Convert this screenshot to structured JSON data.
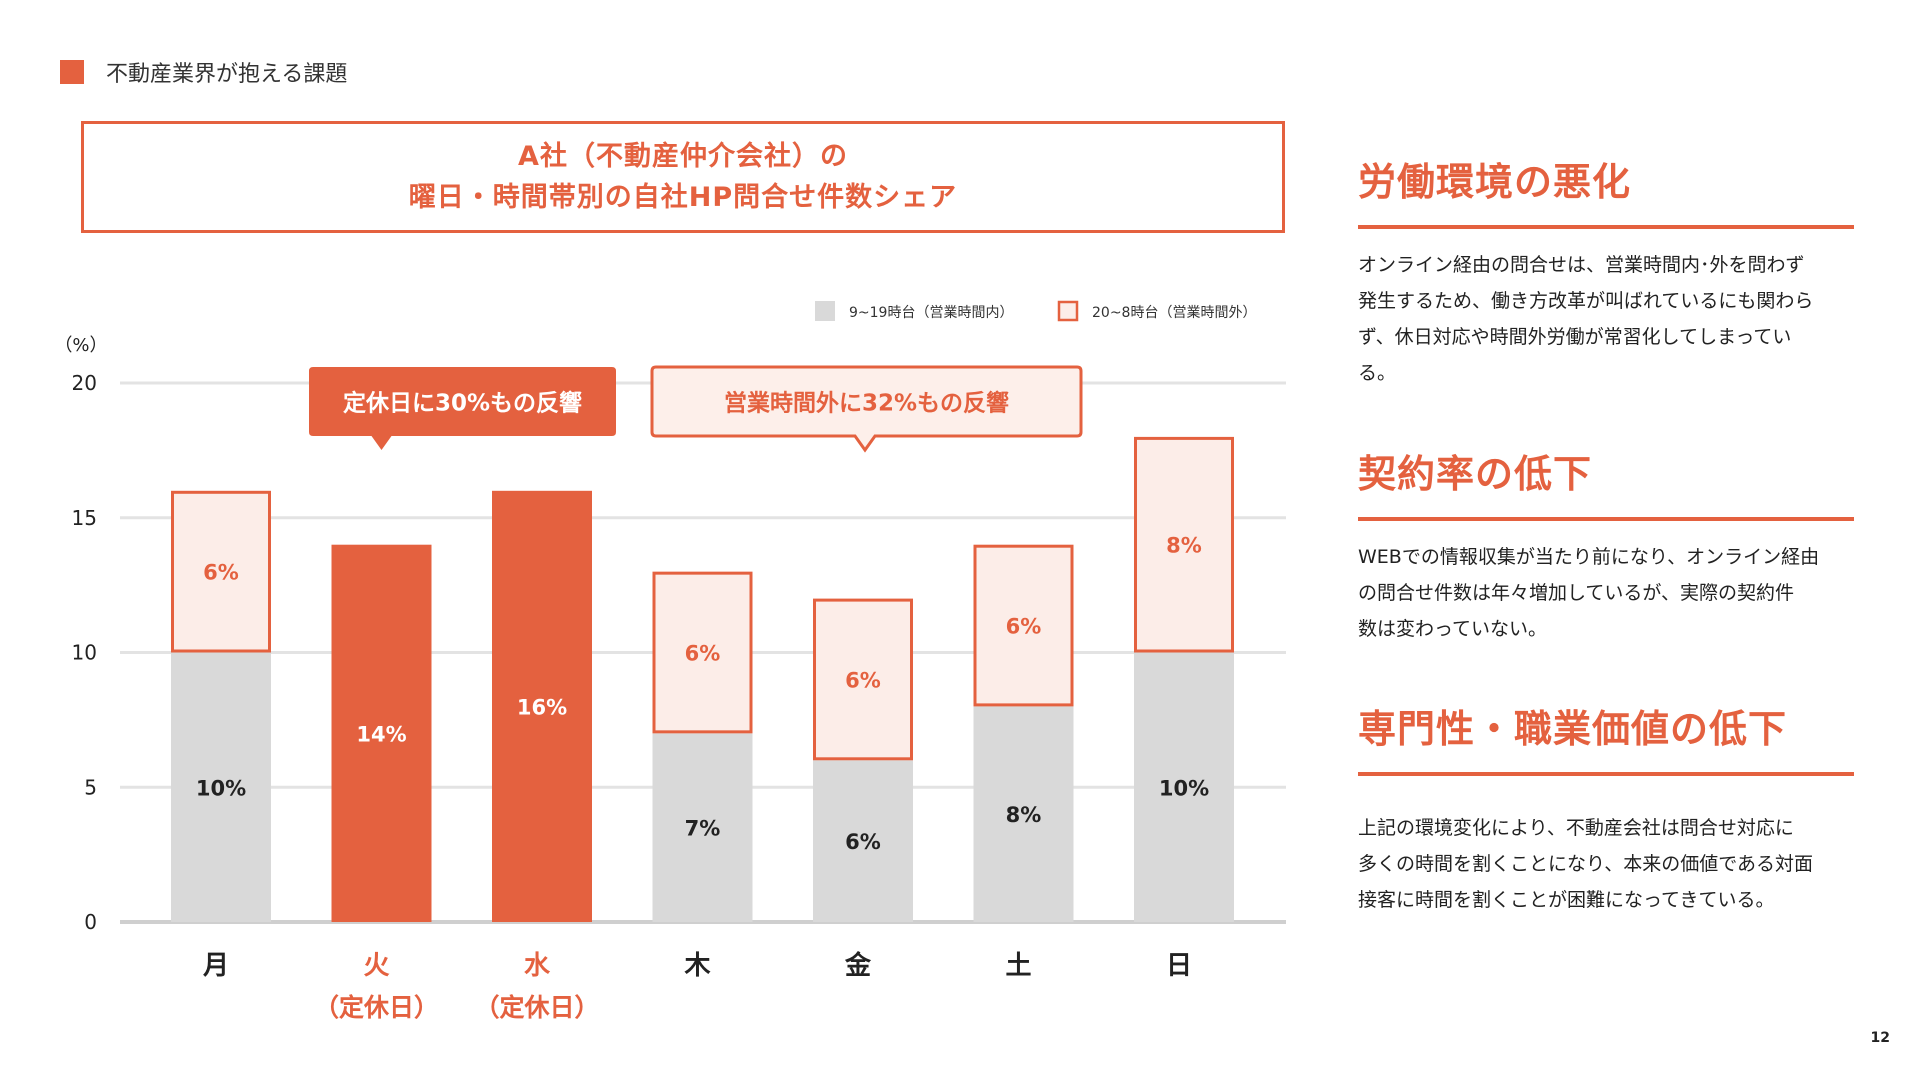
{
  "header": {
    "title": "不動産業界が抱える課題"
  },
  "chart_title": {
    "line1": "A社（不動産仲介会社）の",
    "line2": "曜日・時間帯別の自社HP問合せ件数シェア"
  },
  "chart_data": {
    "type": "bar",
    "stacked": true,
    "unit_label": "（%）",
    "ylim": [
      0,
      20
    ],
    "yticks": [
      0,
      5,
      10,
      15,
      20
    ],
    "grid": true,
    "categories": [
      "月",
      "火",
      "水",
      "木",
      "金",
      "土",
      "日"
    ],
    "category_sublabels": [
      "",
      "（定休日）",
      "（定休日）",
      "",
      "",
      "",
      ""
    ],
    "highlight_categories": [
      1,
      2
    ],
    "series": [
      {
        "name": "9~19時台（営業時間内）",
        "values": [
          10,
          14,
          16,
          7,
          6,
          8,
          10
        ]
      },
      {
        "name": "20~8時台（営業時間外）",
        "values": [
          6,
          0,
          0,
          6,
          6,
          6,
          8
        ]
      }
    ],
    "legend_position": "top-right",
    "annotations": [
      {
        "text": "定休日に30%もの反響",
        "style": "filled",
        "category_start": 1,
        "category_end": 2,
        "points_to": 1
      },
      {
        "text": "営業時間外に32%もの反響",
        "style": "outlined",
        "category_start": 3,
        "category_end": 5,
        "points_to": 4
      }
    ],
    "colors": {
      "in_hours": "#D9D9D9",
      "out_hours_fill": "#FCEDE8",
      "accent": "#E4613F"
    }
  },
  "sections": [
    {
      "heading": "労働環境の悪化",
      "body": [
        "オンライン経由の問合せは、営業時間内･外を問わず",
        "発生するため、働き方改革が叫ばれているにも関わら",
        "ず、休日対応や時間外労働が常習化してしまってい",
        "る。"
      ]
    },
    {
      "heading": "契約率の低下",
      "body": [
        "WEBでの情報収集が当たり前になり、オンライン経由",
        "の問合せ件数は年々増加しているが、実際の契約件",
        "数は変わっていない。"
      ]
    },
    {
      "heading": "専門性・職業価値の低下",
      "body": [
        "上記の環境変化により、不動産会社は問合せ対応に",
        "多くの時間を割くことになり、本来の価値である対面",
        "接客に時間を割くことが困難になってきている。"
      ]
    }
  ],
  "page_number": "12"
}
